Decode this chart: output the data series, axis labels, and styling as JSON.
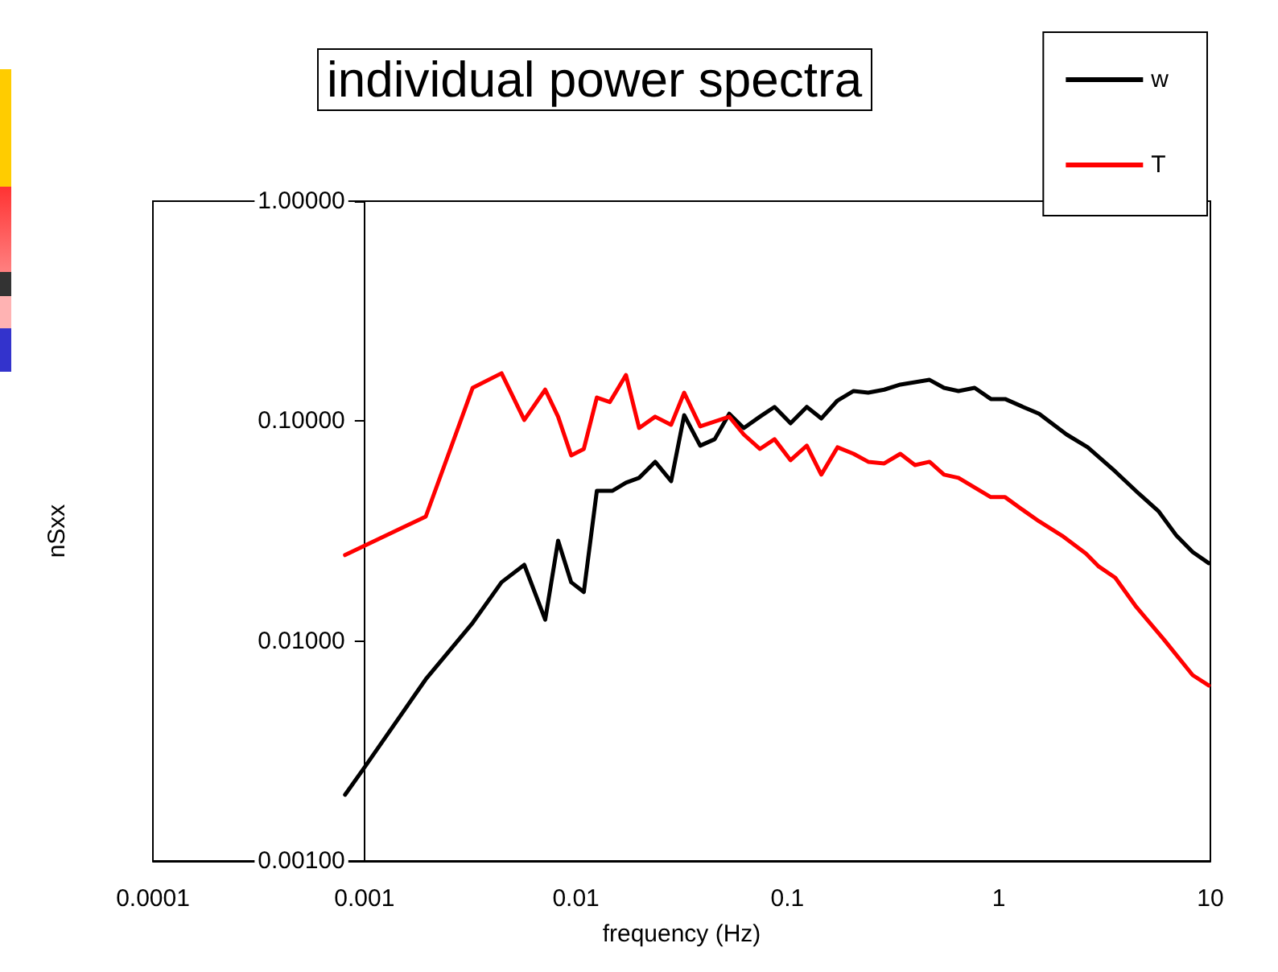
{
  "chart_data": {
    "type": "line",
    "title": "individual power spectra",
    "xlabel": "frequency (Hz)",
    "ylabel": "nSxx",
    "log": "xy",
    "grid": false,
    "legend": "top right",
    "marker": "none",
    "line_style": "solid",
    "xlim": [
      0.0001,
      10
    ],
    "xticks": [
      0.0001,
      0.001,
      0.01,
      0.1,
      1,
      10
    ],
    "ylim": [
      0.001,
      1
    ],
    "yticks": [
      {
        "value": 0.001,
        "label": "0.00100"
      },
      {
        "value": 0.01,
        "label": "0.01000"
      },
      {
        "value": 0.1,
        "label": "0.10000"
      },
      {
        "value": 1,
        "label": "1.00000"
      }
    ],
    "series": [
      {
        "name": "w",
        "color": "#000000",
        "x": [
          0.00081,
          0.001,
          0.00195,
          0.00325,
          0.00445,
          0.0057,
          0.00716,
          0.00824,
          0.0095,
          0.0109,
          0.01256,
          0.0149,
          0.01725,
          0.0199,
          0.0237,
          0.0282,
          0.0325,
          0.0387,
          0.0453,
          0.0531,
          0.0622,
          0.0741,
          0.0869,
          0.1035,
          0.1235,
          0.1446,
          0.1725,
          0.2056,
          0.241,
          0.287,
          0.342,
          0.47,
          0.55,
          0.644,
          0.768,
          0.916,
          1.07,
          1.3,
          1.55,
          2.09,
          2.63,
          3.55,
          4.61,
          5.7,
          6.92,
          8.24,
          9.82
        ],
        "values": [
          0.002,
          0.00266,
          0.0067,
          0.0121,
          0.0185,
          0.0222,
          0.0125,
          0.0286,
          0.0185,
          0.0167,
          0.0482,
          0.0482,
          0.0525,
          0.0552,
          0.0653,
          0.0533,
          0.1064,
          0.0773,
          0.0827,
          0.108,
          0.093,
          0.1047,
          0.116,
          0.0978,
          0.116,
          0.1028,
          0.124,
          0.137,
          0.1347,
          0.139,
          0.1466,
          0.154,
          0.1417,
          0.137,
          0.1417,
          0.126,
          0.126,
          0.116,
          0.108,
          0.0869,
          0.076,
          0.059,
          0.0466,
          0.0388,
          0.0301,
          0.0254,
          0.0226
        ]
      },
      {
        "name": "T",
        "color": "#ff0000",
        "x": [
          0.00081,
          0.00195,
          0.00325,
          0.00445,
          0.0057,
          0.00716,
          0.00824,
          0.0095,
          0.0109,
          0.01256,
          0.01446,
          0.01725,
          0.0199,
          0.0237,
          0.0282,
          0.0325,
          0.0387,
          0.0531,
          0.0622,
          0.0741,
          0.0869,
          0.1035,
          0.1235,
          0.1446,
          0.1725,
          0.2056,
          0.241,
          0.287,
          0.342,
          0.401,
          0.47,
          0.55,
          0.644,
          0.768,
          0.916,
          1.07,
          1.3,
          1.55,
          1.99,
          2.58,
          2.97,
          3.55,
          4.46,
          6.01,
          8.24,
          9.82
        ],
        "values": [
          0.0246,
          0.0368,
          0.1417,
          0.165,
          0.1012,
          0.139,
          0.1047,
          0.0698,
          0.0747,
          0.128,
          0.122,
          0.162,
          0.093,
          0.1047,
          0.0962,
          0.1347,
          0.0946,
          0.1047,
          0.0869,
          0.0747,
          0.0827,
          0.0664,
          0.0773,
          0.0571,
          0.076,
          0.071,
          0.0653,
          0.0642,
          0.071,
          0.0631,
          0.0653,
          0.0571,
          0.0552,
          0.0499,
          0.0451,
          0.0451,
          0.0394,
          0.035,
          0.0301,
          0.025,
          0.0218,
          0.0194,
          0.0143,
          0.0102,
          0.007,
          0.00628
        ]
      }
    ]
  }
}
